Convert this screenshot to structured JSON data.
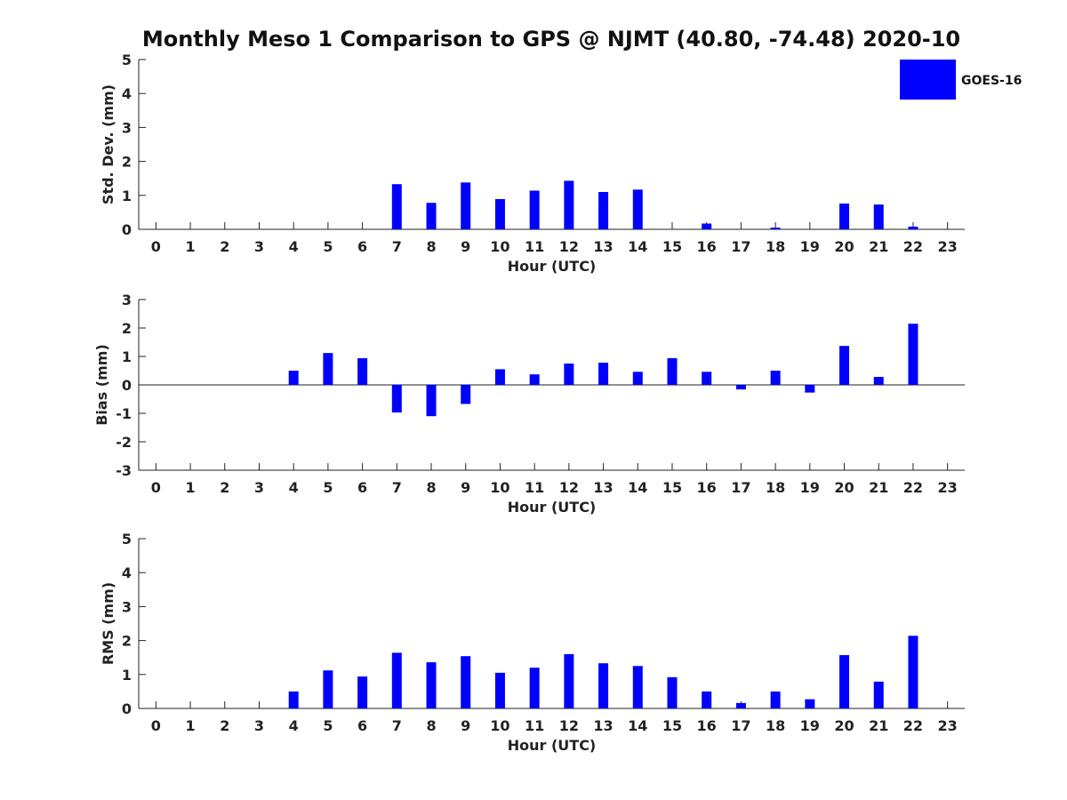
{
  "figure": {
    "title": "Monthly Meso 1 Comparison to GPS @ NJMT (40.80, -74.48) 2020-10"
  },
  "legend": {
    "label": "GOES-16",
    "color": "#0000ff"
  },
  "chart_data": [
    {
      "type": "bar",
      "name": "std-dev",
      "ylabel": "Std. Dev. (mm)",
      "xlabel": "Hour (UTC)",
      "ylim": [
        0,
        5
      ],
      "yticks": [
        0,
        1,
        2,
        3,
        4,
        5
      ],
      "x": [
        0,
        1,
        2,
        3,
        4,
        5,
        6,
        7,
        8,
        9,
        10,
        11,
        12,
        13,
        14,
        15,
        16,
        17,
        18,
        19,
        20,
        21,
        22,
        23
      ],
      "xlim": [
        -0.5,
        23.5
      ],
      "values": [
        null,
        null,
        null,
        null,
        0,
        0,
        0,
        1.33,
        0.78,
        1.38,
        0.89,
        1.14,
        1.43,
        1.1,
        1.17,
        0,
        0.17,
        0,
        0.05,
        0,
        0.76,
        0.73,
        0.08,
        null
      ],
      "color": "#0000ff",
      "legend_position": "top-right"
    },
    {
      "type": "bar",
      "name": "bias",
      "ylabel": "Bias (mm)",
      "xlabel": "Hour (UTC)",
      "ylim": [
        -3,
        3
      ],
      "yticks": [
        -3,
        -2,
        -1,
        0,
        1,
        2,
        3
      ],
      "x": [
        0,
        1,
        2,
        3,
        4,
        5,
        6,
        7,
        8,
        9,
        10,
        11,
        12,
        13,
        14,
        15,
        16,
        17,
        18,
        19,
        20,
        21,
        22,
        23
      ],
      "xlim": [
        -0.5,
        23.5
      ],
      "values": [
        null,
        null,
        null,
        null,
        0.5,
        1.12,
        0.94,
        -0.97,
        -1.1,
        -0.67,
        0.55,
        0.37,
        0.75,
        0.78,
        0.46,
        0.94,
        0.46,
        -0.16,
        0.5,
        -0.27,
        1.37,
        0.28,
        2.15,
        null
      ],
      "color": "#0000ff",
      "zero_line": true
    },
    {
      "type": "bar",
      "name": "rms",
      "ylabel": "RMS (mm)",
      "xlabel": "Hour (UTC)",
      "ylim": [
        0,
        5
      ],
      "yticks": [
        0,
        1,
        2,
        3,
        4,
        5
      ],
      "x": [
        0,
        1,
        2,
        3,
        4,
        5,
        6,
        7,
        8,
        9,
        10,
        11,
        12,
        13,
        14,
        15,
        16,
        17,
        18,
        19,
        20,
        21,
        22,
        23
      ],
      "xlim": [
        -0.5,
        23.5
      ],
      "values": [
        null,
        null,
        null,
        null,
        0.5,
        1.12,
        0.94,
        1.64,
        1.36,
        1.54,
        1.05,
        1.2,
        1.6,
        1.33,
        1.25,
        0.92,
        0.5,
        0.16,
        0.5,
        0.27,
        1.57,
        0.79,
        2.14,
        null
      ],
      "color": "#0000ff"
    }
  ]
}
